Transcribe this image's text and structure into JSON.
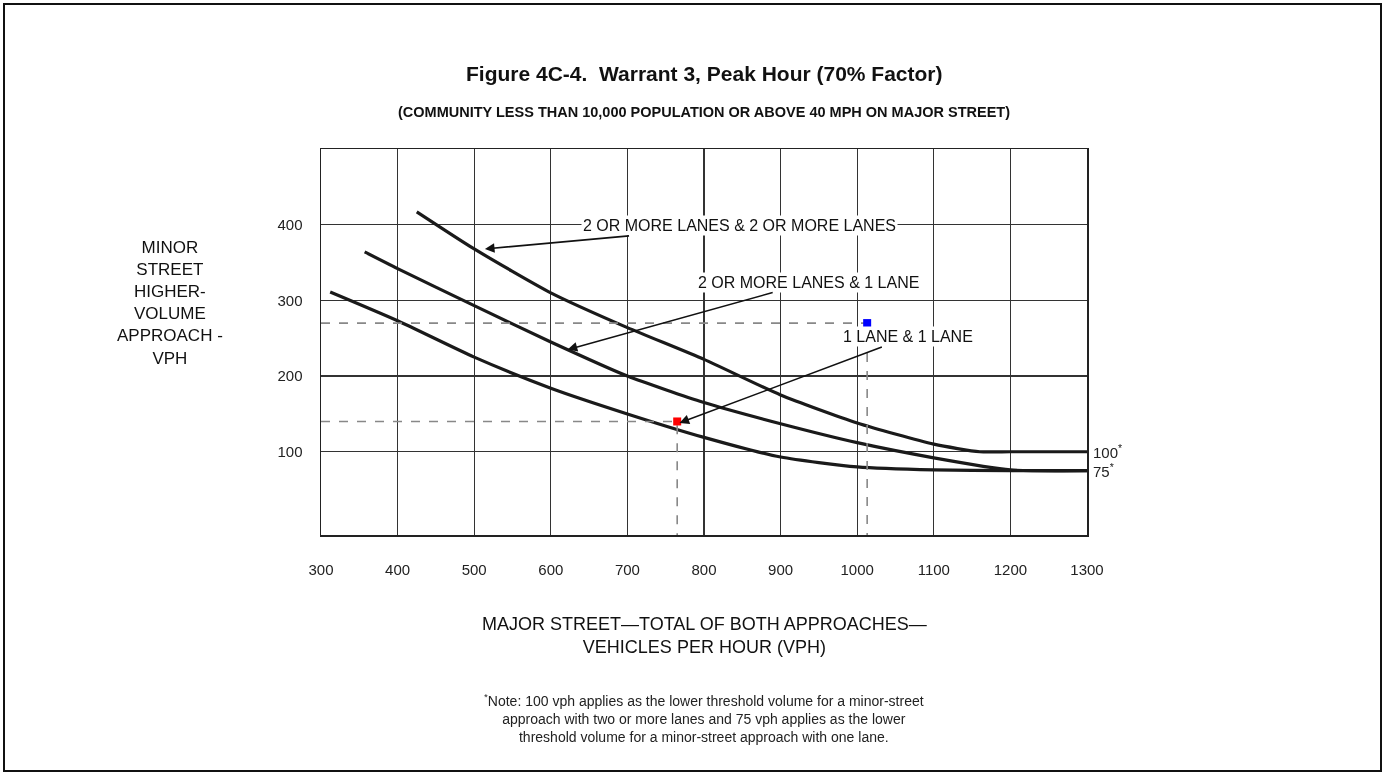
{
  "chart_data": {
    "type": "line",
    "title": "Figure 4C-4.  Warrant 3, Peak Hour (70% Factor)",
    "subtitle": "(COMMUNITY LESS THAN 10,000 POPULATION OR ABOVE 40 MPH ON MAJOR STREET)",
    "xlabel": "MAJOR STREET—TOTAL OF BOTH APPROACHES—\nVEHICLES PER HOUR (VPH)",
    "ylabel": "MINOR\nSTREET\nHIGHER-\nVOLUME\nAPPROACH -\nVPH",
    "xlim": [
      300,
      1300
    ],
    "xticks": [
      300,
      400,
      500,
      600,
      700,
      800,
      900,
      1000,
      1100,
      1200,
      1300
    ],
    "ylim": [
      -10,
      500
    ],
    "yticks": [
      100,
      200,
      300,
      400,
      {
        "value": 500,
        "label": null
      }
    ],
    "grid": true,
    "marker": "none",
    "line_style": "solid",
    "series": [
      {
        "color": "#1a1a1a",
        "x": [
          312,
          400,
          500,
          600,
          700,
          800,
          900,
          1000,
          1100,
          1200,
          1300
        ],
        "values": [
          311,
          273,
          225,
          184,
          150,
          119,
          93,
          80,
          76,
          75,
          75
        ]
      },
      {
        "color": "#1a1a1a",
        "x": [
          357,
          400,
          500,
          600,
          700,
          800,
          900,
          1000,
          1100,
          1200,
          1300
        ],
        "values": [
          364,
          342,
          293,
          245,
          200,
          165,
          137,
          112,
          92,
          76,
          75
        ]
      },
      {
        "color": "#1a1a1a",
        "x": [
          425,
          500,
          600,
          700,
          800,
          900,
          1000,
          1100,
          1160,
          1200,
          1300
        ],
        "values": [
          417,
          368,
          310,
          264,
          222,
          175,
          138,
          110,
          100,
          100,
          100
        ]
      },
      {
        "color": "#888888",
        "line_style": "dashed",
        "x": [
          300,
          765,
          765
        ],
        "values": [
          140,
          140,
          -10
        ]
      },
      {
        "color": "#888888",
        "line_style": "dashed",
        "x": [
          300,
          1013,
          1013
        ],
        "values": [
          270,
          270,
          -10
        ]
      },
      {
        "type": "scatter",
        "marker": "square",
        "color": "#ff0000",
        "x": [
          765
        ],
        "values": [
          140
        ]
      },
      {
        "type": "scatter",
        "marker": "square",
        "color": "#0000ff",
        "x": [
          1013
        ],
        "values": [
          270
        ]
      }
    ],
    "annotations": [
      {
        "text": "2 OR MORE LANES & 2 OR MORE LANES",
        "x": 514,
        "y": 368
      },
      {
        "text": "2 OR MORE LANES & 1 LANE",
        "x": 622,
        "y": 235
      },
      {
        "text": "1 LANE & 1 LANE",
        "x": 768,
        "y": 138
      },
      {
        "text": "100$^{*}$",
        "x": 1300,
        "y": 100
      },
      {
        "text": "75$^{*}$",
        "x": 1300,
        "y": 75
      },
      "$^{*}$Note: 100 vph applies as the lower threshold volume for a minor-street\napproach with two or more lanes and 75 vph applies as the lower\nthreshold volume for a minor-street approach with one lane."
    ]
  }
}
